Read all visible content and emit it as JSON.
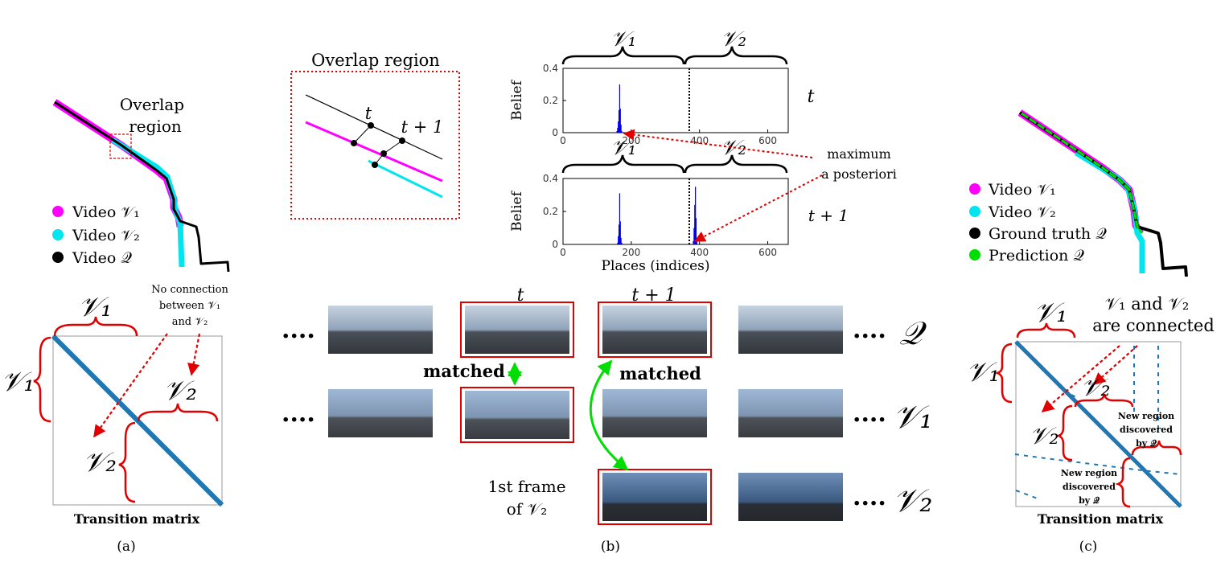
{
  "colors": {
    "magenta": "#ff00ff",
    "cyan": "#00e5ee",
    "black": "#000000",
    "green": "#00dd00",
    "red": "#e00000",
    "matrix_blue": "#1f77b4",
    "bar_blue": "#0000ee"
  },
  "panel_a": {
    "overlap_label": [
      "Overlap",
      "region"
    ],
    "legend": [
      {
        "color_key": "magenta",
        "label": "Video 𝒱₁"
      },
      {
        "color_key": "cyan",
        "label": "Video 𝒱₂"
      },
      {
        "color_key": "black",
        "label": "Video 𝒬"
      }
    ],
    "no_connection_note": [
      "No connection",
      "between 𝒱₁",
      "and 𝒱₂"
    ],
    "v1": "𝒱₁",
    "v2": "𝒱₂",
    "matrix_caption": "Transition matrix",
    "panel_label": "(a)"
  },
  "panel_b": {
    "zoom_title": "Overlap region",
    "t": "t",
    "t1": "t + 1",
    "v1": "𝒱₁",
    "v2": "𝒱₂",
    "q": "𝒬",
    "belief_label": "Belief",
    "map_label": [
      "maximum",
      "a posteriori"
    ],
    "x_axis_label": "Places (indices)",
    "matched": "matched",
    "first_frame": [
      "1st frame",
      "of 𝒱₂"
    ],
    "dots": "....",
    "panel_label": "(b)"
  },
  "chart_data": [
    {
      "type": "bar",
      "row_label": "t",
      "xlim": [
        0,
        660
      ],
      "ylim": [
        0,
        0.4
      ],
      "xticks": [
        0,
        200,
        400,
        600
      ],
      "yticks": [
        0,
        0.2,
        0.4
      ],
      "ylabel": "Belief",
      "boundary_x": 370,
      "x": [
        158,
        160,
        162,
        164,
        166,
        168,
        170,
        172
      ],
      "values": [
        0.01,
        0.03,
        0.07,
        0.14,
        0.3,
        0.15,
        0.05,
        0.01
      ]
    },
    {
      "type": "bar",
      "row_label": "t + 1",
      "xlim": [
        0,
        660
      ],
      "ylim": [
        0,
        0.4
      ],
      "xticks": [
        0,
        200,
        400,
        600
      ],
      "yticks": [
        0,
        0.2,
        0.4
      ],
      "ylabel": "Belief",
      "xlabel": "Places (indices)",
      "boundary_x": 370,
      "x": [
        160,
        162,
        164,
        166,
        168,
        170,
        172,
        382,
        384,
        386,
        388,
        390,
        392
      ],
      "values": [
        0.01,
        0.05,
        0.12,
        0.31,
        0.14,
        0.04,
        0.01,
        0.02,
        0.1,
        0.24,
        0.35,
        0.16,
        0.03
      ]
    }
  ],
  "panel_c": {
    "legend": [
      {
        "color_key": "magenta",
        "label": "Video 𝒱₁"
      },
      {
        "color_key": "cyan",
        "label": "Video 𝒱₂"
      },
      {
        "color_key": "black",
        "label": "Ground truth 𝒬"
      },
      {
        "color_key": "green",
        "label": "Prediction 𝒬"
      }
    ],
    "connected_note": [
      "𝒱₁ and 𝒱₂",
      "are connected"
    ],
    "new_region": [
      "New region",
      "discovered",
      "by 𝒬"
    ],
    "v1": "𝒱₁",
    "v2": "𝒱₂",
    "matrix_caption": "Transition matrix",
    "panel_label": "(c)"
  }
}
